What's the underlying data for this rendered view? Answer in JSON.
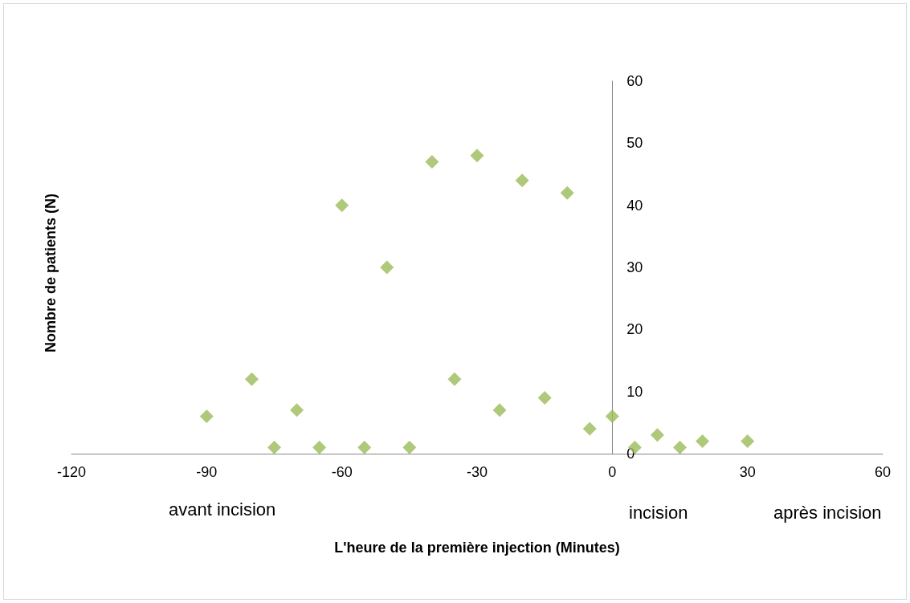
{
  "chart_data": {
    "type": "scatter",
    "xlabel": "L'heure de la première injection (Minutes)",
    "ylabel": "Nombre de patients (N)",
    "x": [
      -90,
      -80,
      -75,
      -70,
      -65,
      -60,
      -55,
      -50,
      -45,
      -40,
      -35,
      -30,
      -25,
      -20,
      -15,
      -10,
      -5,
      0,
      5,
      10,
      15,
      20,
      30
    ],
    "series": [
      {
        "color": "#9bbb59",
        "values": [
          6,
          12,
          1,
          7,
          1,
          40,
          1,
          30,
          1,
          47,
          12,
          48,
          7,
          44,
          9,
          42,
          4,
          6,
          1,
          3,
          1,
          2,
          2
        ]
      }
    ],
    "xlim": [
      -120,
      60
    ],
    "xticks": [
      -120,
      -90,
      -60,
      -30,
      0,
      30,
      60
    ],
    "ylim": [
      0,
      60
    ],
    "yticks": [
      0,
      10,
      20,
      30,
      40,
      50,
      60
    ],
    "grid": false,
    "marker": "diamond",
    "annotations": [
      "avant incision",
      "incision",
      "après incision"
    ]
  }
}
